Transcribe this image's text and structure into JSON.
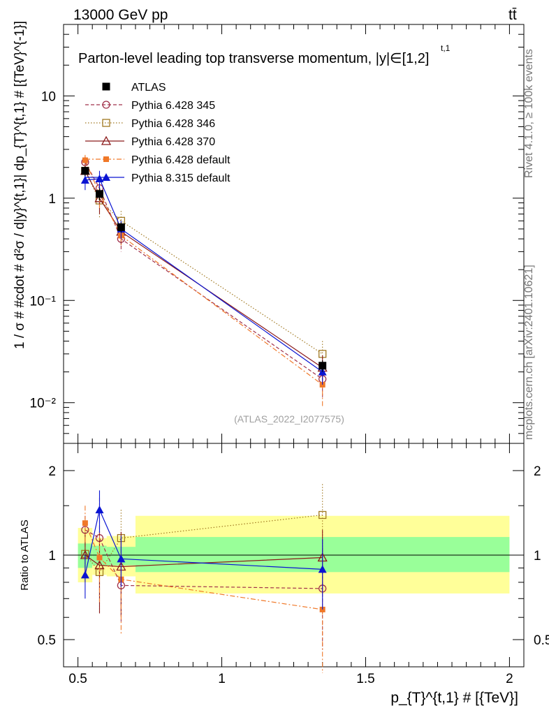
{
  "header": {
    "energy_label": "13000 GeV pp",
    "process_label": "tt̄",
    "title": "Parton-level leading top transverse momentum, |y|∈[1,2]",
    "title_superscript": "t,1",
    "analysis_id": "(ATLAS_2022_I2077575)",
    "side_text_rivet": "Rivet 4.1.0, ≥ 100k events",
    "side_text_mcplots": "mcplots.cern.ch [arXiv:2401.10621]"
  },
  "axes": {
    "top_ylabel": "1 / σ # #cdot # d²σ / d|y}^{t,1}| dp_{T}^{t,1} # [{TeV}^{-1}]",
    "bottom_ylabel": "Ratio to ATLAS",
    "xlabel": "p_{T}^{t,1} # [{TeV}]",
    "x_ticks": [
      "0.5",
      "1",
      "1.5",
      "2"
    ],
    "top_y_ticks": [
      "10⁻²",
      "10⁻¹",
      "1",
      "10"
    ],
    "ratio_y_ticks": [
      "0.5",
      "1",
      "2"
    ]
  },
  "chart_data": [
    {
      "type": "line",
      "panel": "main",
      "yscale": "log",
      "xlim": [
        0.45,
        2.05
      ],
      "ylim": [
        0.004,
        50
      ],
      "x": [
        0.525,
        0.575,
        0.65,
        1.35
      ],
      "series": [
        {
          "name": "ATLAS",
          "color": "#000000",
          "marker": "square-filled",
          "dash": "none",
          "values": [
            1.85,
            1.1,
            0.52,
            0.023
          ],
          "err": [
            0.2,
            0.15,
            0.06,
            0.003
          ]
        },
        {
          "name": "Pythia 6.428 345",
          "color": "#a0304a",
          "marker": "circle-open",
          "dash": "5,3",
          "values": [
            2.25,
            1.25,
            0.4,
            0.017
          ],
          "err": [
            0.3,
            0.3,
            0.1,
            0.006
          ]
        },
        {
          "name": "Pythia 6.428 346",
          "color": "#a07820",
          "marker": "square-open",
          "dash": "1.5,2.5",
          "values": [
            1.85,
            0.95,
            0.6,
            0.03
          ],
          "err": [
            0.3,
            0.3,
            0.15,
            0.01
          ]
        },
        {
          "name": "Pythia 6.428 370",
          "color": "#8b1a1a",
          "marker": "triangle-open",
          "dash": "none",
          "values": [
            1.85,
            1.0,
            0.47,
            0.022
          ],
          "err": [
            0.3,
            0.3,
            0.12,
            0.007
          ]
        },
        {
          "name": "Pythia 6.428 default",
          "color": "#f07828",
          "marker": "square-filled-small",
          "dash": "7,3,2,3",
          "values": [
            2.35,
            1.1,
            0.43,
            0.015
          ],
          "err": [
            0.3,
            0.3,
            0.1,
            0.006
          ]
        },
        {
          "name": "Pythia 8.315 default",
          "color": "#0a14d2",
          "marker": "triangle-filled",
          "dash": "none",
          "values": [
            1.5,
            1.55,
            0.5,
            0.02
          ],
          "err": [
            0.3,
            0.3,
            0.1,
            0.005
          ]
        }
      ]
    },
    {
      "type": "line",
      "panel": "ratio",
      "ylabel": "Ratio to ATLAS",
      "yscale": "log",
      "ylim": [
        0.4,
        2.5
      ],
      "bands": [
        {
          "x_ranges": [
            [
              0.5,
              0.55
            ],
            [
              0.55,
              0.6
            ],
            [
              0.6,
              0.7
            ],
            [
              0.7,
              2.0
            ]
          ],
          "outer": [
            [
              0.8,
              1.25
            ],
            [
              0.85,
              1.15
            ],
            [
              0.84,
              1.17
            ],
            [
              0.73,
              1.38
            ]
          ],
          "inner": [
            [
              0.9,
              1.1
            ],
            [
              0.92,
              1.08
            ],
            [
              0.92,
              1.07
            ],
            [
              0.87,
              1.16
            ]
          ]
        }
      ],
      "x": [
        0.525,
        0.575,
        0.65,
        1.35
      ],
      "series": [
        {
          "name": "Pythia 6.428 345",
          "values": [
            1.23,
            1.15,
            0.78,
            0.76
          ],
          "err": [
            0.15,
            0.45,
            0.2,
            0.3
          ]
        },
        {
          "name": "Pythia 6.428 346",
          "values": [
            1.01,
            0.87,
            1.15,
            1.39
          ],
          "err": [
            0.2,
            0.25,
            0.3,
            0.4
          ]
        },
        {
          "name": "Pythia 6.428 370",
          "values": [
            1.0,
            0.92,
            0.91,
            0.98
          ],
          "err": [
            0.2,
            0.3,
            0.3,
            0.25
          ]
        },
        {
          "name": "Pythia 6.428 default",
          "values": [
            1.3,
            0.98,
            0.82,
            0.64
          ],
          "err": [
            0.2,
            0.3,
            0.3,
            0.26
          ]
        },
        {
          "name": "Pythia 8.315 default",
          "values": [
            0.85,
            1.45,
            0.97,
            0.89
          ],
          "err": [
            0.15,
            0.25,
            0.2,
            0.25
          ]
        }
      ]
    }
  ]
}
